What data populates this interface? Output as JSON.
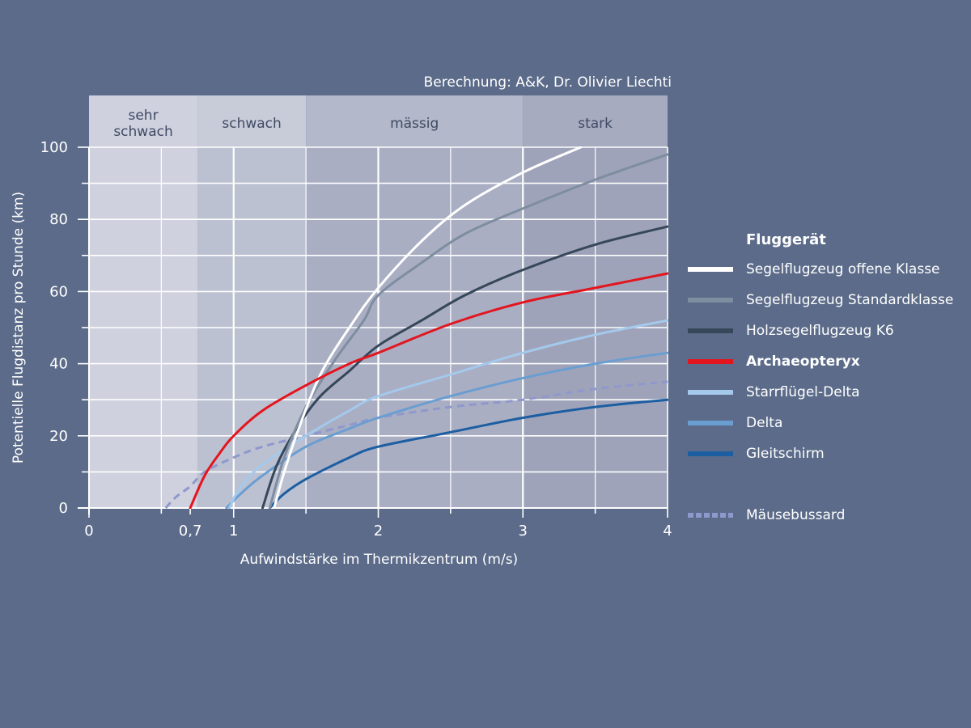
{
  "credit": "Berechnung: A&K, Dr. Olivier Liechti",
  "legend": {
    "title": "Fluggerät"
  },
  "zones": [
    {
      "lines": [
        "sehr",
        "schwach"
      ],
      "from": 0,
      "to": 0.75,
      "color": "#cfd1de",
      "header": "#cfd1de"
    },
    {
      "lines": [
        "schwach"
      ],
      "from": 0.75,
      "to": 1.5,
      "color": "#bcc1d1",
      "header": "#c8ccd9"
    },
    {
      "lines": [
        "mässig"
      ],
      "from": 1.5,
      "to": 3.0,
      "color": "#a9aec3",
      "header": "#b3b8ca"
    },
    {
      "lines": [
        "stark"
      ],
      "from": 3.0,
      "to": 4.0,
      "color": "#9ea3b9",
      "header": "#a6abc0"
    }
  ],
  "chart_data": {
    "type": "line",
    "xlabel": "Aufwindstärke im Thermikzentrum (m/s)",
    "ylabel": "Potentielle Flugdistanz pro Stunde (km)",
    "xlim": [
      0,
      4
    ],
    "ylim": [
      0,
      100
    ],
    "x_ticks": [
      0,
      0.7,
      1,
      2,
      3,
      4
    ],
    "x_tick_labels": [
      "0",
      "0,7",
      "1",
      "2",
      "3",
      "4"
    ],
    "y_ticks": [
      0,
      20,
      40,
      60,
      80,
      100
    ],
    "y_tick_labels": [
      "0",
      "20",
      "40",
      "60",
      "80",
      "100"
    ],
    "grid": true,
    "legend_position": "right",
    "series": [
      {
        "name": "Segelflugzeug offene Klasse",
        "color": "#ffffff",
        "dashed": false,
        "x": [
          1.28,
          1.35,
          1.45,
          1.6,
          1.8,
          2.0,
          2.3,
          2.6,
          3.0,
          3.4
        ],
        "y": [
          0,
          10,
          22,
          37,
          50,
          61,
          74,
          84,
          93,
          100
        ]
      },
      {
        "name": "Segelflugzeug Standardklasse",
        "color": "#7e8da0",
        "dashed": false,
        "x": [
          1.25,
          1.35,
          1.5,
          1.7,
          1.9,
          2.0,
          2.3,
          2.6,
          3.0,
          3.5,
          4.0
        ],
        "y": [
          0,
          14,
          28,
          41,
          52,
          59,
          68,
          76,
          83,
          91,
          98
        ]
      },
      {
        "name": "Holzsegelflugzeug K6",
        "color": "#37475a",
        "dashed": false,
        "x": [
          1.2,
          1.3,
          1.45,
          1.6,
          1.8,
          2.0,
          2.3,
          2.6,
          3.0,
          3.5,
          4.0
        ],
        "y": [
          0,
          12,
          23,
          31,
          38,
          45,
          52,
          59,
          66,
          73,
          78
        ]
      },
      {
        "name": "Archaeopteryx",
        "color": "#e3151f",
        "dashed": false,
        "x": [
          0.7,
          0.8,
          0.9,
          1.0,
          1.2,
          1.5,
          1.8,
          2.0,
          2.5,
          3.0,
          3.5,
          4.0
        ],
        "y": [
          0,
          9,
          15,
          20,
          27,
          34,
          40,
          43,
          51,
          57,
          61,
          65
        ]
      },
      {
        "name": "Starrflügel-Delta",
        "color": "#a4c9ec",
        "dashed": false,
        "x": [
          0.97,
          1.05,
          1.2,
          1.5,
          1.8,
          2.0,
          2.5,
          3.0,
          3.5,
          4.0
        ],
        "y": [
          0,
          6,
          12,
          20,
          27,
          31,
          37,
          43,
          48,
          52
        ]
      },
      {
        "name": "Delta",
        "color": "#6a9ed1",
        "dashed": false,
        "x": [
          0.95,
          1.05,
          1.2,
          1.5,
          1.8,
          2.0,
          2.5,
          3.0,
          3.5,
          4.0
        ],
        "y": [
          0,
          4,
          9,
          17,
          22,
          25,
          31,
          36,
          40,
          43
        ]
      },
      {
        "name": "Gleitschirm",
        "color": "#1c5ea2",
        "dashed": false,
        "x": [
          1.25,
          1.35,
          1.5,
          1.8,
          2.0,
          2.5,
          3.0,
          3.5,
          4.0
        ],
        "y": [
          0,
          4,
          8,
          14,
          17,
          21,
          25,
          28,
          30
        ]
      },
      {
        "name": "Mäusebussard",
        "color": "#8f98cc",
        "dashed": true,
        "x": [
          0.53,
          0.6,
          0.7,
          0.8,
          1.0,
          1.2,
          1.5,
          1.8,
          2.0,
          2.5,
          3.0,
          3.5,
          4.0
        ],
        "y": [
          0,
          3,
          6,
          10,
          14,
          17,
          20,
          23,
          25,
          28,
          30,
          33,
          35
        ]
      }
    ]
  }
}
